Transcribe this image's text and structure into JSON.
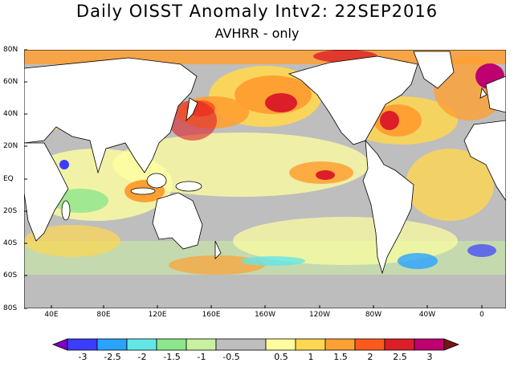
{
  "title": "Daily OISST Anomaly Intv2: 22SEP2016",
  "subtitle": "AVHRR - only",
  "map": {
    "lat_labels": [
      "80N",
      "60N",
      "40N",
      "20N",
      "EQ",
      "20S",
      "40S",
      "60S",
      "80S"
    ],
    "lon_labels": [
      "40E",
      "80E",
      "120E",
      "160E",
      "160W",
      "120W",
      "80W",
      "40W",
      "0"
    ]
  },
  "colorbar": {
    "labels": [
      "-3",
      "-2.5",
      "-2",
      "-1.5",
      "-1",
      "-0.5",
      "0.5",
      "1",
      "1.5",
      "2",
      "2.5",
      "3"
    ],
    "colors": [
      "#7d00c8",
      "#3c3cff",
      "#2aa2ff",
      "#64e6e6",
      "#8ce68c",
      "#c8f0a0",
      "#bebebe",
      "#ffffa0",
      "#ffd750",
      "#ffa032",
      "#ff5a1e",
      "#dc1e28",
      "#be0070",
      "#7a1414"
    ]
  }
}
